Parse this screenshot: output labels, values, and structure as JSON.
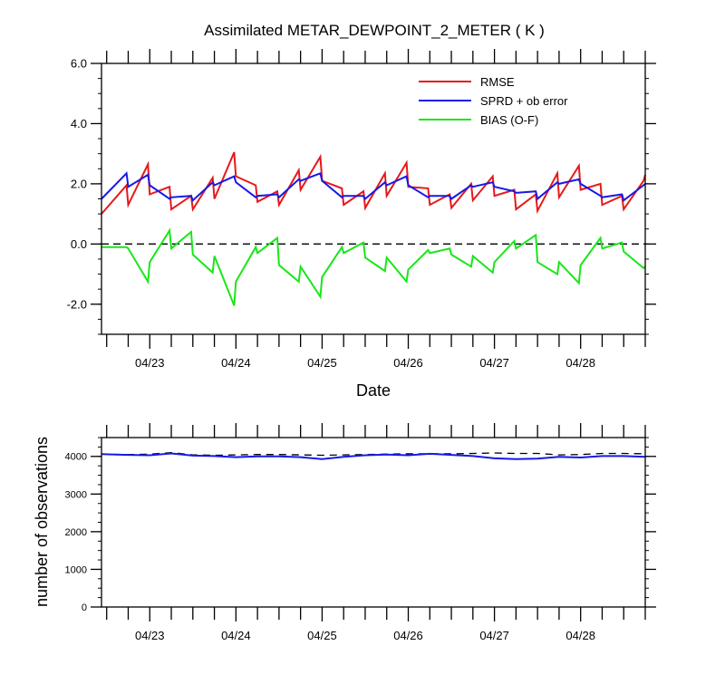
{
  "chart_data": [
    {
      "type": "line",
      "title": "Assimilated METAR_DEWPOINT_2_METER ( K )",
      "xlabel": "Date",
      "ylabel": "",
      "x_unit": "day of April",
      "xlim": [
        22.44,
        28.75
      ],
      "ylim": [
        -3.0,
        6.0
      ],
      "y_ticks": [
        "6.0",
        "4.0",
        "2.0",
        "0.0",
        "-2.0"
      ],
      "y_tick_values": [
        6,
        4,
        2,
        0,
        -2
      ],
      "x_ticks": [
        "04/23",
        "04/24",
        "04/25",
        "04/26",
        "04/27",
        "04/28"
      ],
      "x_tick_values": [
        23,
        24,
        25,
        26,
        27,
        28
      ],
      "grid": false,
      "legend_position": "top-right",
      "reference_line": {
        "y": 0,
        "style": "dashed",
        "color": "#000000"
      },
      "series": [
        {
          "name": "RMSE",
          "color": "#e61919",
          "x": [
            22.44,
            22.73,
            22.75,
            22.98,
            23.0,
            23.23,
            23.25,
            23.48,
            23.5,
            23.73,
            23.75,
            23.98,
            24.0,
            24.23,
            24.25,
            24.48,
            24.5,
            24.73,
            24.75,
            24.98,
            25.0,
            25.23,
            25.25,
            25.48,
            25.5,
            25.73,
            25.75,
            25.98,
            26.0,
            26.23,
            26.25,
            26.48,
            26.5,
            26.73,
            26.75,
            26.98,
            27.0,
            27.23,
            27.25,
            27.48,
            27.5,
            27.73,
            27.75,
            27.98,
            28.0,
            28.23,
            28.25,
            28.48,
            28.5,
            28.73,
            28.75
          ],
          "y": [
            1.0,
            1.95,
            1.3,
            2.65,
            1.65,
            1.9,
            1.15,
            1.6,
            1.15,
            2.2,
            1.5,
            3.05,
            2.25,
            1.95,
            1.4,
            1.75,
            1.3,
            2.45,
            1.8,
            2.9,
            2.1,
            1.85,
            1.3,
            1.75,
            1.2,
            2.35,
            1.6,
            2.7,
            1.9,
            1.85,
            1.3,
            1.65,
            1.2,
            2.0,
            1.45,
            2.25,
            1.6,
            1.8,
            1.15,
            1.65,
            1.1,
            2.35,
            1.55,
            2.6,
            1.8,
            2.0,
            1.3,
            1.6,
            1.15,
            2.1,
            2.3
          ]
        },
        {
          "name": "SPRD + ob error",
          "color": "#1919e6",
          "x": [
            22.44,
            22.73,
            22.75,
            22.98,
            23.0,
            23.23,
            23.25,
            23.48,
            23.5,
            23.73,
            23.75,
            23.98,
            24.0,
            24.23,
            24.25,
            24.48,
            24.5,
            24.73,
            24.75,
            24.98,
            25.0,
            25.23,
            25.25,
            25.48,
            25.5,
            25.73,
            25.75,
            25.98,
            26.0,
            26.23,
            26.25,
            26.48,
            26.5,
            26.73,
            26.75,
            26.98,
            27.0,
            27.23,
            27.25,
            27.48,
            27.5,
            27.73,
            27.75,
            27.98,
            28.0,
            28.23,
            28.25,
            28.48,
            28.5,
            28.73,
            28.75
          ],
          "y": [
            1.5,
            2.35,
            1.9,
            2.3,
            1.95,
            1.5,
            1.55,
            1.6,
            1.45,
            2.05,
            1.95,
            2.25,
            2.05,
            1.55,
            1.6,
            1.65,
            1.55,
            2.15,
            2.1,
            2.35,
            2.1,
            1.55,
            1.6,
            1.6,
            1.5,
            2.05,
            1.95,
            2.25,
            1.95,
            1.55,
            1.6,
            1.6,
            1.5,
            1.95,
            1.9,
            2.05,
            1.9,
            1.75,
            1.7,
            1.75,
            1.5,
            2.05,
            2.0,
            2.15,
            2.0,
            1.6,
            1.55,
            1.65,
            1.45,
            1.95,
            2.0
          ]
        },
        {
          "name": "BIAS (O-F)",
          "color": "#19e619",
          "x": [
            22.44,
            22.73,
            22.75,
            22.98,
            23.0,
            23.23,
            23.25,
            23.48,
            23.5,
            23.73,
            23.75,
            23.98,
            24.0,
            24.23,
            24.25,
            24.48,
            24.5,
            24.73,
            24.75,
            24.98,
            25.0,
            25.23,
            25.25,
            25.48,
            25.5,
            25.73,
            25.75,
            25.98,
            26.0,
            26.23,
            26.25,
            26.48,
            26.5,
            26.73,
            26.75,
            26.98,
            27.0,
            27.23,
            27.25,
            27.48,
            27.5,
            27.73,
            27.75,
            27.98,
            28.0,
            28.23,
            28.25,
            28.48,
            28.5,
            28.73,
            28.75
          ],
          "y": [
            -0.1,
            -0.1,
            -0.15,
            -1.25,
            -0.6,
            0.45,
            -0.15,
            0.4,
            -0.35,
            -0.95,
            -0.4,
            -2.05,
            -1.25,
            -0.1,
            -0.3,
            0.2,
            -0.7,
            -1.25,
            -0.75,
            -1.75,
            -1.1,
            -0.1,
            -0.3,
            0.05,
            -0.45,
            -0.9,
            -0.45,
            -1.25,
            -0.85,
            -0.2,
            -0.3,
            -0.15,
            -0.35,
            -0.75,
            -0.4,
            -0.95,
            -0.6,
            0.1,
            -0.15,
            0.3,
            -0.6,
            -1.0,
            -0.6,
            -1.3,
            -0.7,
            0.2,
            -0.15,
            0.05,
            -0.25,
            -0.8,
            -0.75
          ]
        }
      ]
    },
    {
      "type": "line",
      "title": "",
      "xlabel": "",
      "ylabel": "number of observations",
      "x_unit": "day of April",
      "xlim": [
        22.44,
        28.75
      ],
      "ylim": [
        0,
        4500
      ],
      "y_ticks": [
        "4000",
        "3000",
        "2000",
        "1000",
        "0"
      ],
      "y_tick_values": [
        4000,
        3000,
        2000,
        1000,
        0
      ],
      "x_ticks": [
        "04/23",
        "04/24",
        "04/25",
        "04/26",
        "04/27",
        "04/28"
      ],
      "x_tick_values": [
        23,
        24,
        25,
        26,
        27,
        28
      ],
      "grid": false,
      "series": [
        {
          "style": "dashed",
          "color": "#000000",
          "x": [
            22.44,
            22.75,
            23.0,
            23.25,
            23.5,
            23.75,
            24.0,
            24.25,
            24.5,
            24.75,
            25.0,
            25.25,
            25.5,
            25.75,
            26.0,
            26.25,
            26.5,
            26.75,
            27.0,
            27.25,
            27.5,
            27.75,
            28.0,
            28.25,
            28.5,
            28.75
          ],
          "y": [
            4060,
            4050,
            4060,
            4100,
            4040,
            4030,
            4040,
            4050,
            4050,
            4040,
            4030,
            4040,
            4050,
            4060,
            4070,
            4070,
            4070,
            4080,
            4090,
            4080,
            4080,
            4040,
            4050,
            4080,
            4080,
            4070
          ]
        },
        {
          "style": "solid",
          "color": "#1919e6",
          "x": [
            22.44,
            22.75,
            23.0,
            23.25,
            23.5,
            23.75,
            24.0,
            24.25,
            24.5,
            24.75,
            25.0,
            25.25,
            25.5,
            25.75,
            26.0,
            26.25,
            26.5,
            26.75,
            27.0,
            27.25,
            27.5,
            27.75,
            28.0,
            28.25,
            28.5,
            28.75
          ],
          "y": [
            4060,
            4040,
            4030,
            4080,
            4020,
            4010,
            3980,
            4000,
            4000,
            3980,
            3930,
            3990,
            4030,
            4050,
            4030,
            4070,
            4040,
            4010,
            3950,
            3930,
            3940,
            3990,
            3970,
            4010,
            4010,
            3990
          ]
        }
      ]
    }
  ]
}
